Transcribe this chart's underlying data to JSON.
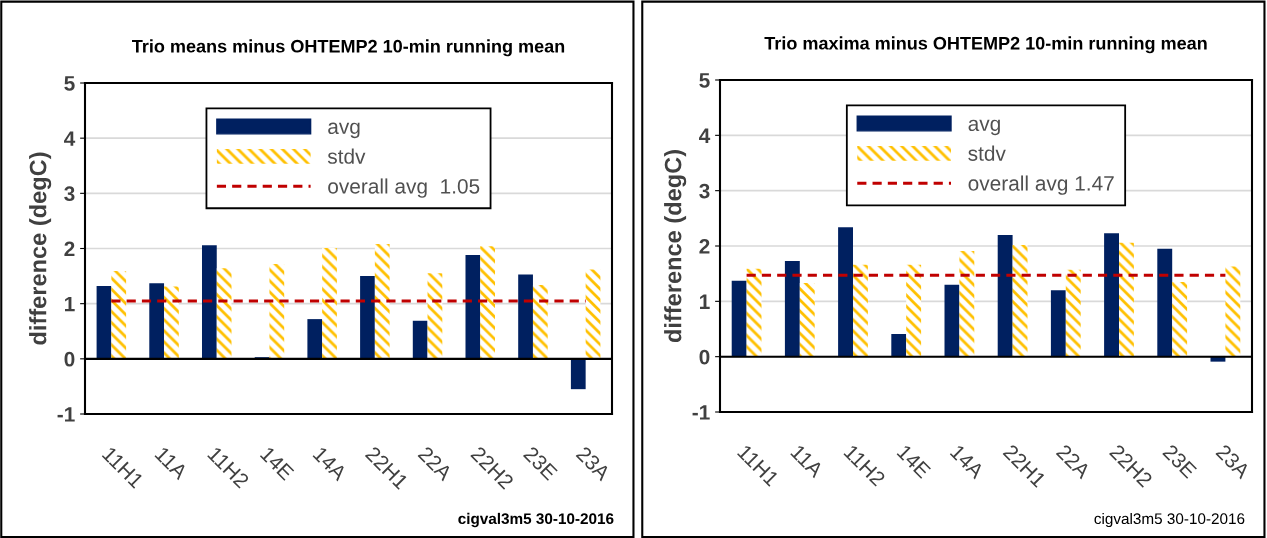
{
  "chart_data": [
    {
      "type": "bar",
      "title": "Trio means minus OHTEMP2 10-min running mean",
      "ylabel": "difference (degC)",
      "categories": [
        "11H1",
        "11A",
        "11H2",
        "14E",
        "14A",
        "22H1",
        "22A",
        "22H2",
        "23E",
        "23A"
      ],
      "series": [
        {
          "name": "avg",
          "color": "#002060",
          "values": [
            1.32,
            1.37,
            2.06,
            0.03,
            0.72,
            1.5,
            0.69,
            1.88,
            1.53,
            -0.55
          ]
        },
        {
          "name": "stdv",
          "color": "#ffc000",
          "values": [
            1.59,
            1.31,
            1.64,
            1.72,
            2.01,
            2.08,
            1.55,
            2.04,
            1.34,
            1.62
          ]
        }
      ],
      "ref_lines": [
        {
          "axis": "y",
          "value": 1.05,
          "label": "overall avg  1.05",
          "color": "#c00000",
          "line_style": "dashed"
        }
      ],
      "ylim": [
        -1,
        5
      ],
      "yticks": [
        -1,
        0,
        1,
        2,
        3,
        4,
        5
      ],
      "grid": "y",
      "legend": "top",
      "annotations": [
        "cigval3m5 30-10-2016"
      ]
    },
    {
      "type": "bar",
      "title": "Trio maxima minus OHTEMP2 10-min running mean",
      "ylabel": "difference (degC)",
      "categories": [
        "11H1",
        "11A",
        "11H2",
        "14E",
        "14A",
        "22H1",
        "22A",
        "22H2",
        "23E",
        "23A"
      ],
      "series": [
        {
          "name": "avg",
          "color": "#002060",
          "values": [
            1.37,
            1.73,
            2.34,
            0.41,
            1.3,
            2.2,
            1.2,
            2.23,
            1.95,
            -0.09
          ]
        },
        {
          "name": "stdv",
          "color": "#ffc000",
          "values": [
            1.59,
            1.33,
            1.66,
            1.66,
            1.91,
            2.02,
            1.57,
            2.06,
            1.35,
            1.63
          ]
        }
      ],
      "ref_lines": [
        {
          "axis": "y",
          "value": 1.47,
          "label": "overall avg 1.47",
          "color": "#c00000",
          "line_style": "dashed"
        }
      ],
      "ylim": [
        -1,
        5
      ],
      "yticks": [
        -1,
        0,
        1,
        2,
        3,
        4,
        5
      ],
      "grid": "y",
      "legend": "top",
      "annotations": [
        "cigval3m5 30-10-2016"
      ]
    }
  ]
}
